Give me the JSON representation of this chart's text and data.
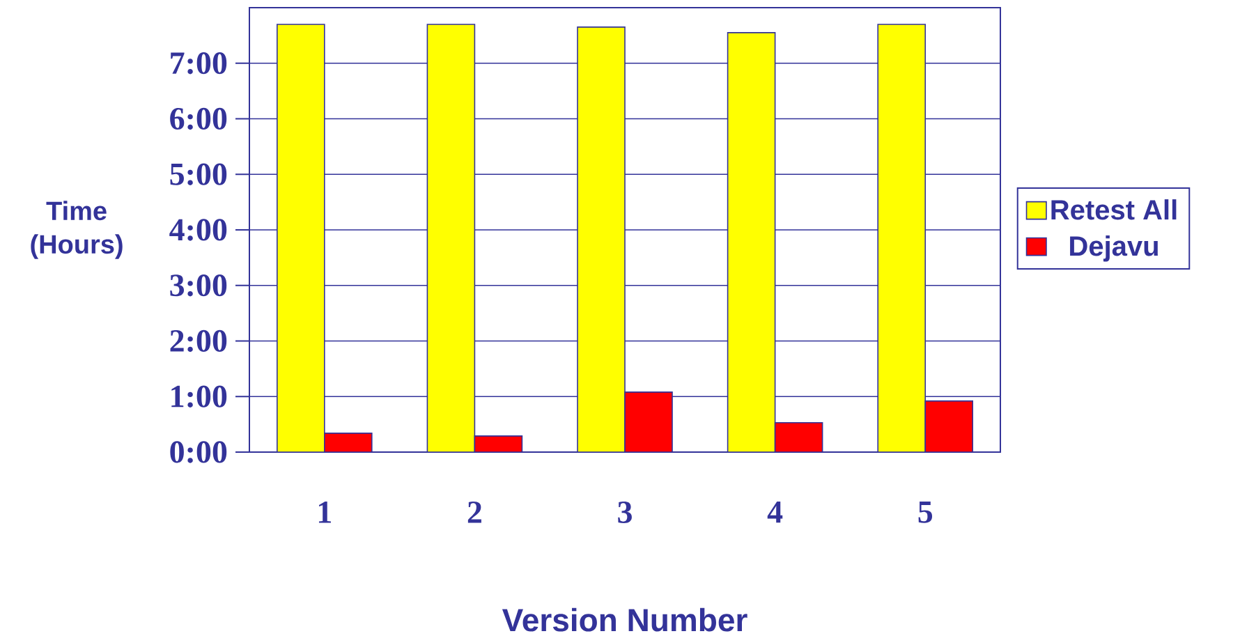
{
  "chart_data": {
    "type": "bar",
    "xlabel": "Version Number",
    "ylabel": "Time (Hours)",
    "categories": [
      "1",
      "2",
      "3",
      "4",
      "5"
    ],
    "series": [
      {
        "name": "Retest All",
        "color": "#ffff00",
        "values": [
          7.7,
          7.7,
          7.65,
          7.55,
          7.7
        ]
      },
      {
        "name": "Dejavu",
        "color": "#ff0000",
        "values": [
          0.34,
          0.29,
          1.08,
          0.53,
          0.92
        ]
      }
    ],
    "ylim": [
      0,
      8
    ],
    "yticks": [
      {
        "value": 0,
        "label": "0:00"
      },
      {
        "value": 1,
        "label": "1:00"
      },
      {
        "value": 2,
        "label": "2:00"
      },
      {
        "value": 3,
        "label": "3:00"
      },
      {
        "value": 4,
        "label": "4:00"
      },
      {
        "value": 5,
        "label": "5:00"
      },
      {
        "value": 6,
        "label": "6:00"
      },
      {
        "value": 7,
        "label": "7:00"
      }
    ],
    "grid": "y",
    "legend": "right"
  }
}
